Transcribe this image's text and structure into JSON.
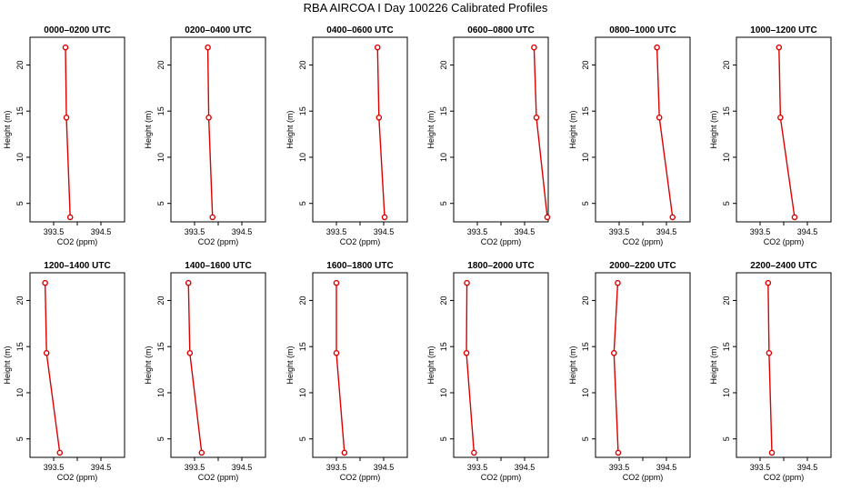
{
  "title": "RBA AIRCOA I  Day 100226  Calibrated Profiles",
  "chart_data": {
    "type": "line",
    "xlabel": "CO2 (ppm)",
    "ylabel": "Height (m)",
    "xlim": [
      393.0,
      395.0
    ],
    "ylim": [
      3,
      23
    ],
    "xticks": [
      "393.5",
      "394.5"
    ],
    "yticks": [
      "5",
      "10",
      "15",
      "20"
    ],
    "heights": [
      21.9,
      14.3,
      3.5
    ],
    "panels": [
      {
        "title": "0000–0200 UTC",
        "values": [
          393.75,
          393.77,
          393.85
        ]
      },
      {
        "title": "0200–0400 UTC",
        "values": [
          393.78,
          393.8,
          393.88
        ]
      },
      {
        "title": "0400–0600 UTC",
        "values": [
          394.37,
          394.4,
          394.52
        ]
      },
      {
        "title": "0600–0800 UTC",
        "values": [
          394.7,
          394.75,
          394.98
        ]
      },
      {
        "title": "0800–1000 UTC",
        "values": [
          394.3,
          394.35,
          394.63
        ]
      },
      {
        "title": "1000–1200 UTC",
        "values": [
          393.9,
          393.93,
          394.23
        ]
      },
      {
        "title": "1200–1400 UTC",
        "values": [
          393.32,
          393.35,
          393.63
        ]
      },
      {
        "title": "1400–1600 UTC",
        "values": [
          393.37,
          393.4,
          393.65
        ]
      },
      {
        "title": "1600–1800 UTC",
        "values": [
          393.5,
          393.5,
          393.67
        ]
      },
      {
        "title": "1800–2000 UTC",
        "values": [
          393.28,
          393.27,
          393.43
        ]
      },
      {
        "title": "2000–2200 UTC",
        "values": [
          393.47,
          393.39,
          393.48
        ]
      },
      {
        "title": "2200–2400 UTC",
        "values": [
          393.67,
          393.69,
          393.75
        ]
      }
    ]
  }
}
